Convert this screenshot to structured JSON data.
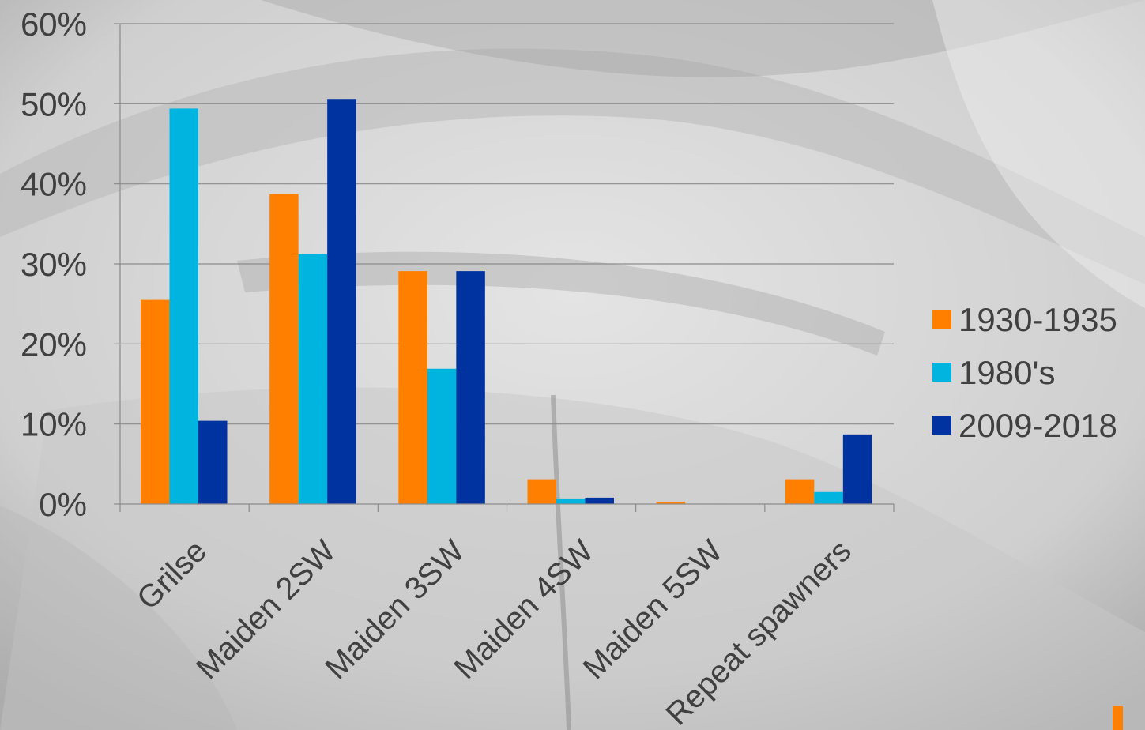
{
  "chart_data": {
    "type": "bar",
    "categories": [
      "Grilse",
      "Maiden 2SW",
      "Maiden 3SW",
      "Maiden 4SW",
      "Maiden 5SW",
      "Repeat spawners"
    ],
    "series": [
      {
        "name": "1930-1935",
        "color": "#ff8000",
        "values": [
          25.5,
          38.7,
          29.1,
          3.1,
          0.3,
          3.1
        ]
      },
      {
        "name": "1980's",
        "color": "#00b4e0",
        "values": [
          49.4,
          31.2,
          16.9,
          0.7,
          0.0,
          1.5
        ]
      },
      {
        "name": "2009-2018",
        "color": "#0033a0",
        "values": [
          10.4,
          50.6,
          29.1,
          0.8,
          0.0,
          8.7
        ]
      }
    ],
    "yticks": [
      "0%",
      "10%",
      "20%",
      "30%",
      "40%",
      "50%",
      "60%"
    ],
    "ylim": [
      0,
      60
    ],
    "grid": true,
    "legend_position": "right"
  }
}
